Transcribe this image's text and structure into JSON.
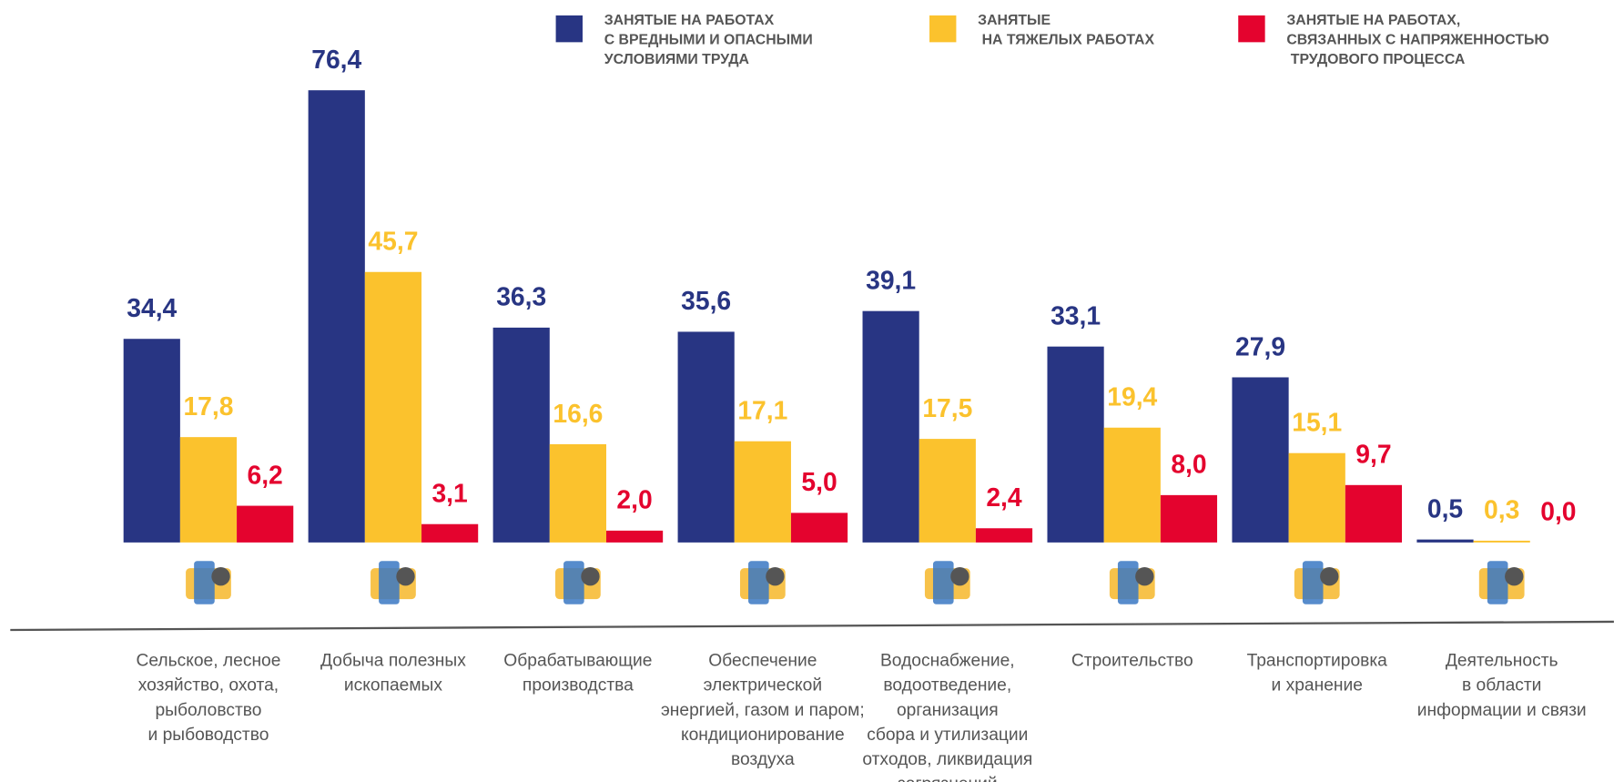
{
  "chart_data": {
    "type": "bar",
    "categories": [
      "Сельское, лесное\nхозяйство, охота,\nрыболовство\nи рыбоводство",
      "Добыча полезных\nископаемых",
      "Обрабатывающие\nпроизводства",
      "Обеспечение\nэлектрической\nэнергией, газом и паром;\nкондиционирование\nвоздуха",
      "Водоснабжение,\nводоотведение,\nорганизация\nсбора и утилизации\nотходов, ликвидация\nзагрязнений",
      "Строительство",
      "Транспортировка\nи хранение",
      "Деятельность\nв области\nинформации и связи"
    ],
    "series": [
      {
        "name": "ЗАНЯТЫЕ НА РАБОТАХ\nС ВРЕДНЫМИ И ОПАСНЫМИ\nУСЛОВИЯМИ ТРУДА",
        "color": "#283583",
        "values": [
          34.4,
          76.4,
          36.3,
          35.6,
          39.1,
          33.1,
          27.9,
          0.5
        ],
        "value_labels": [
          "34,4",
          "76,4",
          "36,3",
          "35,6",
          "39,1",
          "33,1",
          "27,9",
          "0,5"
        ]
      },
      {
        "name": "ЗАНЯТЫЕ\n НА ТЯЖЕЛЫХ РАБОТАХ",
        "color": "#fbc22d",
        "values": [
          17.8,
          45.7,
          16.6,
          17.1,
          17.5,
          19.4,
          15.1,
          0.3
        ],
        "value_labels": [
          "17,8",
          "45,7",
          "16,6",
          "17,1",
          "17,5",
          "19,4",
          "15,1",
          "0,3"
        ]
      },
      {
        "name": "ЗАНЯТЫЕ НА РАБОТАХ,\nСВЯЗАННЫХ С НАПРЯЖЕННОСТЬЮ\n ТРУДОВОГО ПРОЦЕССА",
        "color": "#e4032e",
        "values": [
          6.2,
          3.1,
          2.0,
          5.0,
          2.4,
          8.0,
          9.7,
          0.0
        ],
        "value_labels": [
          "6,2",
          "3,1",
          "2,0",
          "5,0",
          "2,4",
          "8,0",
          "9,7",
          "0,0"
        ]
      }
    ],
    "ylim": [
      0,
      80
    ]
  }
}
